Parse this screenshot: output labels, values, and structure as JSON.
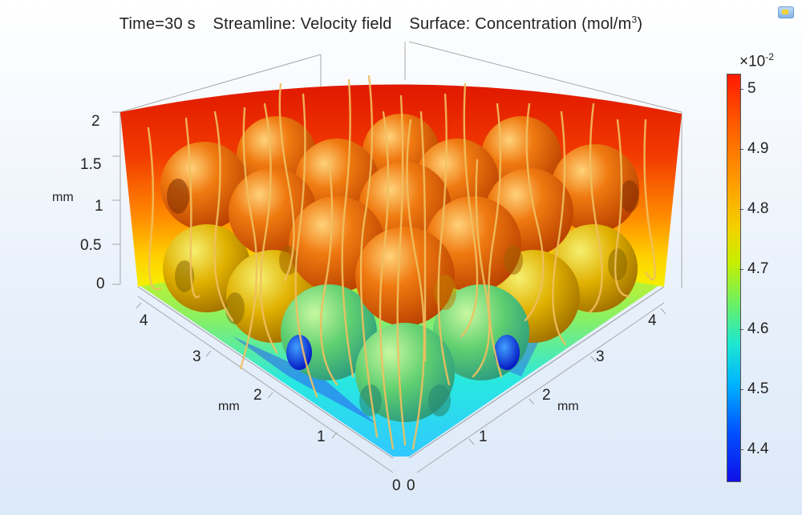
{
  "title": {
    "time": "Time=30 s",
    "streamline": "Streamline: Velocity field",
    "surface_prefix": "Surface: Concentration (mol/m",
    "surface_exp": "3",
    "surface_suffix": ")"
  },
  "axes": {
    "z_ticks": [
      "2",
      "1.5",
      "1",
      "0.5",
      "0"
    ],
    "z_unit": "mm",
    "left_ticks": [
      "4",
      "3",
      "2",
      "1",
      "0"
    ],
    "left_unit": "mm",
    "right_ticks": [
      "0",
      "1",
      "2",
      "3",
      "4"
    ],
    "right_unit": "mm"
  },
  "colorbar": {
    "exponent_prefix": "×10",
    "exponent": "-2",
    "labels": [
      "5",
      "4.9",
      "4.8",
      "4.7",
      "4.6",
      "4.5",
      "4.4"
    ],
    "colors": {
      "high": "#ff1a00",
      "mid": "#c8ee00",
      "low": "#1010e8"
    }
  },
  "icons": {
    "corner": "toolbar-snapshot-icon"
  }
}
